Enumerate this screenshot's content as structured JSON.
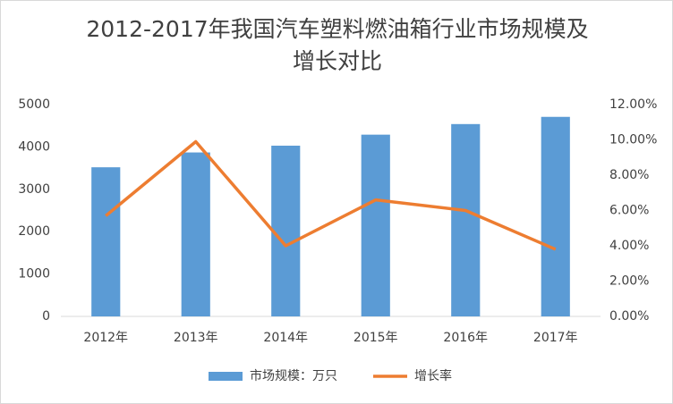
{
  "chart_data": {
    "type": "bar",
    "title": "2012-2017年我国汽车塑料燃油箱行业市场规模及增长对比",
    "categories": [
      "2012年",
      "2013年",
      "2014年",
      "2015年",
      "2016年",
      "2017年"
    ],
    "series": [
      {
        "name": "市场规模：万只",
        "type": "bar",
        "color": "#5b9bd5",
        "values": [
          3520,
          3870,
          4030,
          4290,
          4540,
          4710
        ]
      },
      {
        "name": "增长率",
        "type": "line",
        "axis": "y2",
        "color": "#ed7d31",
        "values": [
          5.7,
          9.9,
          4.0,
          6.6,
          6.0,
          3.8
        ]
      }
    ],
    "ylim": [
      0,
      5000
    ],
    "yticks": [
      0,
      1000,
      2000,
      3000,
      4000,
      5000
    ],
    "y2lim": [
      0,
      12
    ],
    "y2ticks": [
      {
        "value": 0,
        "label": "0.00%"
      },
      {
        "value": 2,
        "label": "2.00%"
      },
      {
        "value": 4,
        "label": "4.00%"
      },
      {
        "value": 6,
        "label": "6.00%"
      },
      {
        "value": 8,
        "label": "8.00%"
      },
      {
        "value": 10,
        "label": "10.00%"
      },
      {
        "value": 12,
        "label": "12.00%"
      }
    ],
    "grid": false,
    "legend": "bottom"
  }
}
